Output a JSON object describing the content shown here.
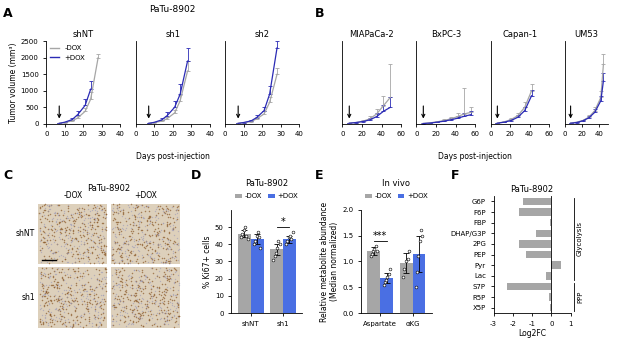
{
  "chart_data": [
    {
      "type": "line",
      "panel": "A",
      "suptitle": "PaTu-8902",
      "title": "shNT",
      "xlabel": "Days post-injection",
      "ylabel": "Tumor volume (mm³)",
      "x": [
        7,
        10,
        14,
        17,
        21,
        24,
        28
      ],
      "xlim": [
        0,
        40
      ],
      "xticks": [
        0,
        10,
        20,
        30,
        40
      ],
      "ylim": [
        0,
        2500
      ],
      "yticks": [
        0,
        500,
        1000,
        1500,
        2000,
        2500
      ],
      "legend": "upper left",
      "arrow_x": 7,
      "series": [
        {
          "name": "-DOX",
          "color": "#a6a6a6",
          "values": [
            15,
            40,
            90,
            180,
            380,
            750,
            2000
          ],
          "errors": [
            5,
            15,
            40,
            60,
            100,
            200,
            100
          ]
        },
        {
          "name": "+DOX",
          "color": "#2b2bb5",
          "values": [
            15,
            50,
            130,
            280,
            560,
            1050,
            null
          ],
          "errors": [
            5,
            20,
            60,
            120,
            200,
            250,
            null
          ]
        }
      ]
    },
    {
      "type": "line",
      "title": "sh1",
      "tick_labels": "x",
      "x": [
        7,
        10,
        14,
        17,
        21,
        24,
        28
      ],
      "xlim": [
        0,
        40
      ],
      "xticks": [
        0,
        10,
        20,
        30,
        40
      ],
      "ylim": [
        0,
        2500
      ],
      "arrow_x": 7,
      "series": [
        {
          "name": "-DOX",
          "color": "#a6a6a6",
          "values": [
            15,
            40,
            80,
            160,
            330,
            700,
            1600
          ],
          "errors": [
            5,
            15,
            30,
            50,
            90,
            180,
            300
          ]
        },
        {
          "name": "+DOX",
          "color": "#2b2bb5",
          "values": [
            15,
            45,
            120,
            250,
            500,
            900,
            1900
          ],
          "errors": [
            5,
            20,
            50,
            100,
            180,
            300,
            400
          ]
        }
      ]
    },
    {
      "type": "line",
      "title": "sh2",
      "tick_labels": "x",
      "x": [
        7,
        10,
        14,
        17,
        21,
        24,
        28
      ],
      "xlim": [
        0,
        40
      ],
      "xticks": [
        0,
        10,
        20,
        30,
        40
      ],
      "ylim": [
        0,
        2500
      ],
      "arrow_x": 7,
      "series": [
        {
          "name": "-DOX",
          "color": "#a6a6a6",
          "values": [
            15,
            35,
            70,
            150,
            300,
            650,
            1500
          ],
          "errors": [
            5,
            10,
            30,
            50,
            80,
            150,
            200
          ]
        },
        {
          "name": "+DOX",
          "color": "#2b2bb5",
          "values": [
            15,
            40,
            90,
            190,
            400,
            900,
            2300
          ],
          "errors": [
            5,
            15,
            40,
            70,
            120,
            250,
            200
          ]
        }
      ]
    },
    {
      "type": "line",
      "panel": "B",
      "title": "MIAPaCa-2",
      "xlabel": "Days post-injection",
      "tick_labels": "x",
      "x": [
        7,
        14,
        21,
        28,
        35,
        42,
        49
      ],
      "xlim": [
        0,
        60
      ],
      "xticks": [
        0,
        20,
        40,
        60
      ],
      "ylim": [
        0,
        2500
      ],
      "arrow_x": 7,
      "series": [
        {
          "name": "-DOX",
          "color": "#a6a6a6",
          "values": [
            20,
            40,
            80,
            150,
            300,
            550,
            800
          ],
          "errors": [
            10,
            20,
            40,
            80,
            150,
            300,
            1000
          ]
        },
        {
          "name": "+DOX",
          "color": "#2b2bb5",
          "values": [
            20,
            40,
            70,
            120,
            220,
            380,
            500
          ],
          "errors": [
            10,
            15,
            30,
            60,
            100,
            200,
            300
          ]
        }
      ]
    },
    {
      "type": "line",
      "title": "BxPC-3",
      "tick_labels": "x",
      "x": [
        7,
        14,
        21,
        28,
        35,
        42,
        49,
        56
      ],
      "xlim": [
        0,
        60
      ],
      "xticks": [
        0,
        20,
        40,
        60
      ],
      "ylim": [
        0,
        2500
      ],
      "arrow_x": 7,
      "series": [
        {
          "name": "-DOX",
          "color": "#a6a6a6",
          "values": [
            10,
            30,
            60,
            100,
            150,
            220,
            300,
            350
          ],
          "errors": [
            5,
            10,
            20,
            40,
            60,
            100,
            800,
            150
          ]
        },
        {
          "name": "+DOX",
          "color": "#2b2bb5",
          "values": [
            10,
            25,
            50,
            80,
            120,
            170,
            230,
            280
          ],
          "errors": [
            5,
            10,
            20,
            30,
            50,
            80,
            100,
            120
          ]
        }
      ]
    },
    {
      "type": "line",
      "title": "Capan-1",
      "tick_labels": "x",
      "x": [
        7,
        14,
        21,
        28,
        35,
        42
      ],
      "xlim": [
        0,
        60
      ],
      "xticks": [
        0,
        20,
        40,
        60
      ],
      "ylim": [
        0,
        2500
      ],
      "arrow_x": 7,
      "series": [
        {
          "name": "-DOX",
          "color": "#a6a6a6",
          "values": [
            20,
            60,
            130,
            250,
            500,
            1000
          ],
          "errors": [
            10,
            20,
            40,
            80,
            150,
            200
          ]
        },
        {
          "name": "+DOX",
          "color": "#2b2bb5",
          "values": [
            20,
            50,
            100,
            200,
            400,
            850
          ],
          "errors": [
            10,
            20,
            40,
            60,
            120,
            180
          ]
        }
      ]
    },
    {
      "type": "line",
      "title": "UM53",
      "tick_labels": "x",
      "x": [
        7,
        14,
        21,
        28,
        35,
        42,
        45
      ],
      "xlim": [
        0,
        50
      ],
      "xticks": [
        0,
        20,
        40
      ],
      "ylim": [
        0,
        2500
      ],
      "arrow_x": 7,
      "series": [
        {
          "name": "-DOX",
          "color": "#a6a6a6",
          "values": [
            20,
            50,
            100,
            200,
            400,
            800,
            1800
          ],
          "errors": [
            10,
            20,
            30,
            60,
            100,
            200,
            300
          ]
        },
        {
          "name": "+DOX",
          "color": "#2b2bb5",
          "values": [
            20,
            40,
            90,
            180,
            350,
            700,
            1300
          ],
          "errors": [
            10,
            15,
            30,
            50,
            90,
            150,
            250
          ]
        }
      ]
    },
    {
      "type": "image",
      "panel": "C",
      "title": "PaTu-8902",
      "columns": [
        "-DOX",
        "+DOX"
      ],
      "rows": [
        "shNT",
        "sh1"
      ]
    },
    {
      "type": "bar",
      "panel": "D",
      "title": "PaTu-8902",
      "ylabel": "% Ki67+ cells",
      "categories": [
        "shNT",
        "sh1"
      ],
      "ylim": [
        0,
        60
      ],
      "yticks": [
        0,
        10,
        20,
        30,
        40,
        50
      ],
      "legend": "upper center",
      "series": [
        {
          "name": "-DOX",
          "color": "#a6a6a6",
          "values": [
            46,
            37
          ],
          "errors": [
            2,
            3
          ],
          "points": [
            [
              44,
              46,
              48,
              50,
              45,
              43
            ],
            [
              31,
              33,
              35,
              38,
              42,
              40
            ]
          ]
        },
        {
          "name": "+DOX",
          "color": "#4a6fe3",
          "values": [
            43,
            43
          ],
          "errors": [
            3,
            2
          ],
          "points": [
            [
              40,
              42,
              45,
              47,
              44,
              38
            ],
            [
              40,
              42,
              44,
              45,
              43,
              47
            ]
          ]
        }
      ],
      "annotations": [
        {
          "text": "*",
          "category": "sh1"
        }
      ]
    },
    {
      "type": "bar",
      "panel": "E",
      "title": "In vivo",
      "ylabel": "Relative metabolite abundance\n(Median normalized)",
      "categories": [
        "Aspartate",
        "αKG"
      ],
      "ylim": [
        0,
        2
      ],
      "yticks": [
        {
          "value": 0,
          "label": "0.0"
        },
        {
          "value": 0.5,
          "label": "0.5"
        },
        {
          "value": 1,
          "label": "1.0"
        },
        {
          "value": 1.5,
          "label": "1.5"
        },
        {
          "value": 2,
          "label": "2.0"
        }
      ],
      "legend": "upper center",
      "series": [
        {
          "name": "-DOX",
          "color": "#a6a6a6",
          "values": [
            1.2,
            0.97
          ],
          "errors": [
            0.08,
            0.2
          ],
          "points": [
            [
              1.1,
              1.15,
              1.2,
              1.25,
              1.3,
              1.2
            ],
            [
              0.7,
              0.85,
              1.0,
              1.05,
              1.2
            ]
          ]
        },
        {
          "name": "+DOX",
          "color": "#4a6fe3",
          "values": [
            0.68,
            1.15
          ],
          "errors": [
            0.1,
            0.35
          ],
          "points": [
            [
              0.55,
              0.6,
              0.65,
              0.7,
              0.75,
              0.85
            ],
            [
              0.5,
              0.8,
              1.1,
              1.4,
              1.6,
              1.5
            ]
          ]
        }
      ],
      "annotations": [
        {
          "text": "***",
          "category": "Aspartate"
        }
      ]
    },
    {
      "type": "bar",
      "orientation": "horizontal",
      "panel": "F",
      "title": "PaTu-8902",
      "xlabel": "Log2FC",
      "categories": [
        "G6P",
        "F6P",
        "FBP",
        "DHAP/G3P",
        "2PG",
        "PEP",
        "Pyr",
        "Lac",
        "S7P",
        "R5P",
        "X5P"
      ],
      "values": [
        -1.5,
        -1.7,
        -0.1,
        -0.8,
        -1.7,
        -1.3,
        0.5,
        -0.3,
        -2.3,
        -0.15,
        -0.1
      ],
      "color": "#a6a6a6",
      "xlim": [
        -3,
        1
      ],
      "xticks": [
        -3,
        -2,
        -1,
        0,
        1
      ],
      "groups": [
        {
          "label": "Glycolysis",
          "from": "G6P",
          "to": "Lac"
        },
        {
          "label": "PPP",
          "from": "S7P",
          "to": "X5P"
        }
      ]
    }
  ]
}
